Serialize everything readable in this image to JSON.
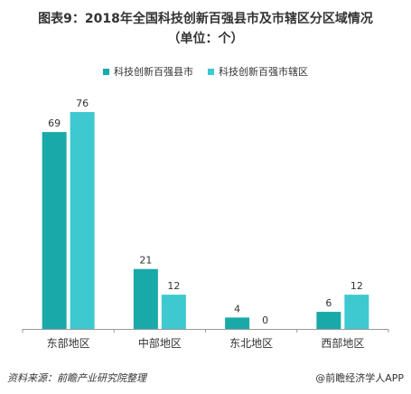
{
  "title_line1": "图表9：2018年全国科技创新百强县市及市辖区分区域情况",
  "title_line2": "（单位：个）",
  "source": "资料来源：前瞻产业研究院整理",
  "brand": "@前瞻经济学人APP",
  "colors": {
    "series1": "#1aa9a9",
    "series2": "#3ec8d0",
    "axis": "#999999",
    "label": "#333333"
  },
  "chart_data": {
    "type": "bar",
    "title": "图表9：2018年全国科技创新百强县市及市辖区分区域情况（单位：个）",
    "categories": [
      "东部地区",
      "中部地区",
      "东北地区",
      "西部地区"
    ],
    "series": [
      {
        "name": "科技创新百强县市",
        "values": [
          69,
          21,
          4,
          6
        ]
      },
      {
        "name": "科技创新百强市辖区",
        "values": [
          76,
          12,
          0,
          12
        ]
      }
    ],
    "ylim": [
      0,
      76
    ],
    "grid": false,
    "legend": "top"
  }
}
